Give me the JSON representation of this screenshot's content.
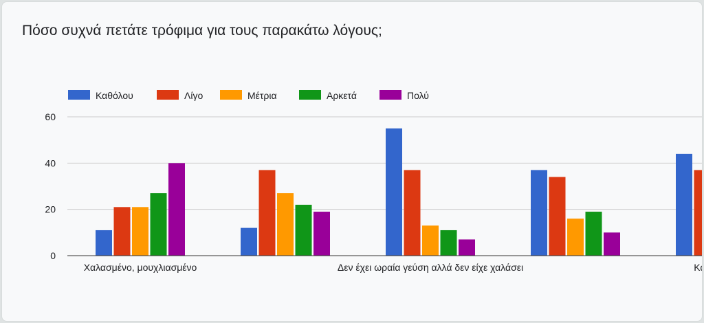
{
  "chart_data": {
    "type": "bar",
    "title": "Πόσο συχνά πετάτε τρόφιμα για τους παρακάτω λόγους;",
    "categories": [
      "Χαλασμένο, μουχλιασμένο",
      "",
      "Δεν έχει ωραία γεύση αλλά δεν είχε χαλάσει",
      "",
      "Καταστροφή"
    ],
    "series": [
      {
        "name": "Καθόλου",
        "color": "#3366cc",
        "values": [
          11,
          12,
          55,
          37,
          44
        ]
      },
      {
        "name": "Λίγο",
        "color": "#dc3912",
        "values": [
          21,
          37,
          37,
          34,
          37
        ]
      },
      {
        "name": "Μέτρια",
        "color": "#ff9900",
        "values": [
          21,
          27,
          13,
          16,
          null
        ]
      },
      {
        "name": "Αρκετά",
        "color": "#109618",
        "values": [
          27,
          22,
          11,
          19,
          null
        ]
      },
      {
        "name": "Πολύ",
        "color": "#990099",
        "values": [
          40,
          19,
          7,
          10,
          null
        ]
      }
    ],
    "yticks": [
      0,
      20,
      40,
      60
    ],
    "ylim": [
      0,
      60
    ],
    "xlabel": "",
    "ylabel": "",
    "grid": true,
    "legend_position": "top"
  }
}
